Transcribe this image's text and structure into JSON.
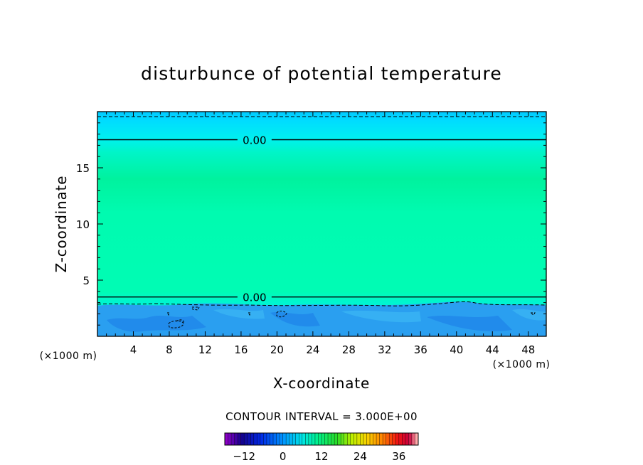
{
  "chart_data": {
    "type": "heatmap",
    "title": "disturbunce of potential temperature",
    "xlabel": "X-coordinate",
    "ylabel": "Z-coordinate",
    "x_unit": "(×1000 m)",
    "x_unit_right": "(×1000 m)",
    "xlim": [
      0,
      50
    ],
    "ylim": [
      0,
      20
    ],
    "x_ticks": [
      4,
      8,
      12,
      16,
      20,
      24,
      28,
      32,
      36,
      40,
      44,
      48
    ],
    "y_ticks": [
      5,
      10,
      15
    ],
    "contour_lines": [
      {
        "label": "0.00",
        "z": 17.5
      },
      {
        "label": "0.00",
        "z": 3.5
      }
    ],
    "contour_interval_label": "CONTOUR INTERVAL = 3.000E+00",
    "colorbar": {
      "min": -18,
      "max": 42,
      "ticks": [
        -12,
        0,
        12,
        24,
        36
      ]
    },
    "colors": {
      "field_main": "#00fcb1",
      "field_mid": "#00f59a",
      "field_upper": "#00f0ee",
      "field_top": "#00cfff",
      "field_bottom": "#1e9cf0"
    }
  }
}
